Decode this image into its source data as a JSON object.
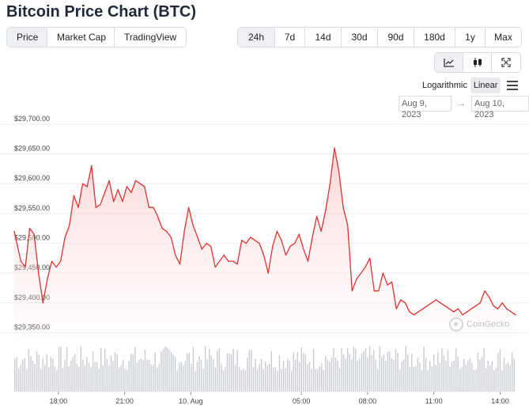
{
  "page": {
    "title": "Bitcoin Price Chart (BTC)"
  },
  "tabs": [
    {
      "label": "Price",
      "active": true
    },
    {
      "label": "Market Cap",
      "active": false
    },
    {
      "label": "TradingView",
      "active": false
    }
  ],
  "ranges": [
    {
      "label": "24h",
      "active": true
    },
    {
      "label": "7d",
      "active": false
    },
    {
      "label": "14d",
      "active": false
    },
    {
      "label": "30d",
      "active": false
    },
    {
      "label": "90d",
      "active": false
    },
    {
      "label": "180d",
      "active": false
    },
    {
      "label": "1y",
      "active": false
    },
    {
      "label": "Max",
      "active": false
    }
  ],
  "view_modes": [
    {
      "icon": "line-chart-icon",
      "active": true
    },
    {
      "icon": "candlestick-icon",
      "active": false
    },
    {
      "icon": "fullscreen-icon",
      "active": false
    }
  ],
  "scale": {
    "logarithmic": "Logarithmic",
    "linear": "Linear",
    "active": "linear"
  },
  "date_range": {
    "from": "Aug 9, 2023",
    "to": "Aug 10, 2023",
    "separator": "→"
  },
  "watermark": "CoinGecko",
  "colors": {
    "line": "#e03131",
    "fill_top": "#fbd5d5",
    "grid": "#eeeeee",
    "volume": "#c8cbd0"
  },
  "chart_data": {
    "type": "line",
    "title": "",
    "x_unit": "hours since 16:00 Aug 9, 2023",
    "x_ticks": [
      {
        "x": 2,
        "label": "18:00"
      },
      {
        "x": 5,
        "label": "21:00"
      },
      {
        "x": 8,
        "label": "10. Aug"
      },
      {
        "x": 13,
        "label": "05:00"
      },
      {
        "x": 16,
        "label": "08:00"
      },
      {
        "x": 19,
        "label": "11:00"
      },
      {
        "x": 22,
        "label": "14:00"
      }
    ],
    "xlim": [
      0,
      22.7
    ],
    "y_ticks": [
      {
        "y": 29350,
        "label": "$29,350.00"
      },
      {
        "y": 29400,
        "label": "$29,400.00"
      },
      {
        "y": 29450,
        "label": "$29,450.00"
      },
      {
        "y": 29500,
        "label": "$29,500.00"
      },
      {
        "y": 29550,
        "label": "$29,550.00"
      },
      {
        "y": 29600,
        "label": "$29,600.00"
      },
      {
        "y": 29650,
        "label": "$29,650.00"
      },
      {
        "y": 29700,
        "label": "$29,700.00"
      }
    ],
    "ylim": [
      29340,
      29705
    ],
    "grid": true,
    "series": [
      {
        "x": [
          0,
          0.3,
          0.5,
          0.7,
          0.9,
          1.1,
          1.3,
          1.5,
          1.7,
          1.9,
          2.1,
          2.3,
          2.5,
          2.7,
          2.9,
          3.1,
          3.3,
          3.5,
          3.7,
          3.9,
          4.1,
          4.3,
          4.5,
          4.7,
          4.9,
          5.1,
          5.3,
          5.5,
          5.7,
          5.9,
          6.1,
          6.3,
          6.5,
          6.7,
          6.9,
          7.1,
          7.3,
          7.5,
          7.7,
          7.9,
          8.1,
          8.3,
          8.5,
          8.7,
          8.9,
          9.1,
          9.3,
          9.5,
          9.7,
          9.9,
          10.1,
          10.3,
          10.5,
          10.7,
          10.9,
          11.1,
          11.3,
          11.5,
          11.7,
          11.9,
          12.1,
          12.3,
          12.5,
          12.7,
          12.9,
          13.1,
          13.3,
          13.5,
          13.7,
          13.9,
          14.1,
          14.3,
          14.5,
          14.7,
          14.9,
          15.1,
          15.3,
          15.5,
          15.7,
          15.9,
          16.1,
          16.3,
          16.5,
          16.7,
          16.9,
          17.1,
          17.3,
          17.5,
          17.7,
          17.9,
          18.1,
          18.3,
          18.5,
          18.7,
          18.9,
          19.1,
          19.3,
          19.5,
          19.7,
          19.9,
          20.1,
          20.3,
          20.5,
          20.7,
          20.9,
          21.1,
          21.3,
          21.5,
          21.7,
          21.9,
          22.1,
          22.3,
          22.5,
          22.7
        ],
        "y": [
          29520,
          29470,
          29460,
          29525,
          29515,
          29450,
          29400,
          29440,
          29470,
          29460,
          29470,
          29510,
          29530,
          29580,
          29560,
          29600,
          29595,
          29630,
          29560,
          29565,
          29585,
          29605,
          29570,
          29590,
          29570,
          29595,
          29585,
          29605,
          29600,
          29595,
          29560,
          29560,
          29545,
          29525,
          29520,
          29510,
          29480,
          29465,
          29520,
          29560,
          29530,
          29510,
          29490,
          29500,
          29495,
          29460,
          29470,
          29480,
          29470,
          29470,
          29465,
          29505,
          29500,
          29510,
          29505,
          29500,
          29480,
          29450,
          29495,
          29520,
          29505,
          29480,
          29495,
          29500,
          29515,
          29490,
          29470,
          29510,
          29545,
          29520,
          29555,
          29600,
          29660,
          29620,
          29560,
          29530,
          29420,
          29440,
          29450,
          29460,
          29475,
          29420,
          29420,
          29450,
          29430,
          29435,
          29390,
          29405,
          29400,
          29385,
          29380,
          29385,
          29390,
          29395,
          29400,
          29405,
          29400,
          29395,
          29390,
          29385,
          29390,
          29380,
          29385,
          29390,
          29395,
          29400,
          29420,
          29410,
          29395,
          29390,
          29400,
          29390,
          29385,
          29380
        ]
      }
    ],
    "volume": {
      "x_start": 0,
      "x_end": 22.7,
      "count": 250,
      "relative_max": 1
    }
  }
}
